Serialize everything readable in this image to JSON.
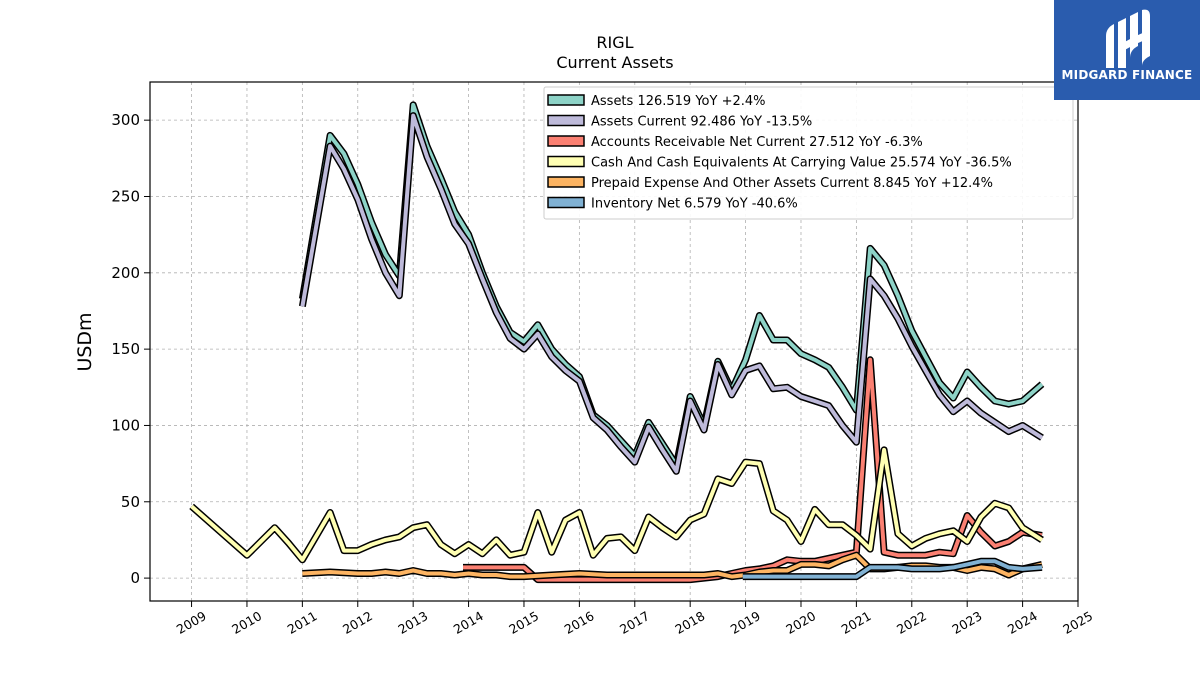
{
  "brand": {
    "name": "MIDGARD FINANCE",
    "bg": "#2a5cae"
  },
  "chart_data": {
    "type": "line",
    "title": "RIGL",
    "subtitle": "Current  Assets",
    "xlabel": "",
    "ylabel": "USDm",
    "xlim": [
      2008.25,
      2025.0
    ],
    "ylim": [
      -15,
      325
    ],
    "yticks": [
      0,
      50,
      100,
      150,
      200,
      250,
      300
    ],
    "xticks": [
      2009,
      2010,
      2011,
      2012,
      2013,
      2014,
      2015,
      2016,
      2017,
      2018,
      2019,
      2020,
      2021,
      2022,
      2023,
      2024,
      2025
    ],
    "grid": true,
    "legend_position": "top-right",
    "series": [
      {
        "name": "Assets  126.519 YoY +2.4%",
        "color": "#8dd3c7",
        "points": [
          [
            2011.0,
            183
          ],
          [
            2011.5,
            290
          ],
          [
            2011.75,
            278
          ],
          [
            2012.0,
            258
          ],
          [
            2012.25,
            233
          ],
          [
            2012.5,
            212
          ],
          [
            2012.75,
            198
          ],
          [
            2013.0,
            310
          ],
          [
            2013.25,
            283
          ],
          [
            2013.5,
            262
          ],
          [
            2013.75,
            240
          ],
          [
            2014.0,
            225
          ],
          [
            2014.25,
            200
          ],
          [
            2014.5,
            178
          ],
          [
            2014.75,
            161
          ],
          [
            2015.0,
            155
          ],
          [
            2015.25,
            166
          ],
          [
            2015.5,
            150
          ],
          [
            2015.75,
            140
          ],
          [
            2016.0,
            132
          ],
          [
            2016.25,
            107
          ],
          [
            2016.5,
            100
          ],
          [
            2016.75,
            90
          ],
          [
            2017.0,
            80
          ],
          [
            2017.25,
            102
          ],
          [
            2017.5,
            88
          ],
          [
            2017.75,
            74
          ],
          [
            2018.0,
            119
          ],
          [
            2018.25,
            100
          ],
          [
            2018.5,
            142
          ],
          [
            2018.75,
            123
          ],
          [
            2019.0,
            143
          ],
          [
            2019.25,
            172
          ],
          [
            2019.5,
            156
          ],
          [
            2019.75,
            156
          ],
          [
            2020.0,
            147
          ],
          [
            2020.25,
            143
          ],
          [
            2020.5,
            138
          ],
          [
            2020.75,
            125
          ],
          [
            2021.0,
            110
          ],
          [
            2021.25,
            216
          ],
          [
            2021.5,
            205
          ],
          [
            2021.75,
            185
          ],
          [
            2022.0,
            162
          ],
          [
            2022.25,
            145
          ],
          [
            2022.5,
            128
          ],
          [
            2022.75,
            118
          ],
          [
            2023.0,
            135
          ],
          [
            2023.25,
            125
          ],
          [
            2023.5,
            116
          ],
          [
            2023.75,
            114
          ],
          [
            2024.0,
            116
          ],
          [
            2024.35,
            127
          ]
        ]
      },
      {
        "name": "Assets Current  92.486 YoY -13.5%",
        "color": "#bebada",
        "points": [
          [
            2011.0,
            178
          ],
          [
            2011.5,
            283
          ],
          [
            2011.75,
            268
          ],
          [
            2012.0,
            248
          ],
          [
            2012.25,
            222
          ],
          [
            2012.5,
            200
          ],
          [
            2012.75,
            185
          ],
          [
            2013.0,
            303
          ],
          [
            2013.25,
            276
          ],
          [
            2013.5,
            255
          ],
          [
            2013.75,
            232
          ],
          [
            2014.0,
            219
          ],
          [
            2014.25,
            196
          ],
          [
            2014.5,
            174
          ],
          [
            2014.75,
            157
          ],
          [
            2015.0,
            150
          ],
          [
            2015.25,
            160
          ],
          [
            2015.5,
            145
          ],
          [
            2015.75,
            136
          ],
          [
            2016.0,
            129
          ],
          [
            2016.25,
            105
          ],
          [
            2016.5,
            97
          ],
          [
            2016.75,
            86
          ],
          [
            2017.0,
            76
          ],
          [
            2017.25,
            99
          ],
          [
            2017.5,
            84
          ],
          [
            2017.75,
            70
          ],
          [
            2018.0,
            116
          ],
          [
            2018.25,
            97
          ],
          [
            2018.5,
            140
          ],
          [
            2018.75,
            120
          ],
          [
            2019.0,
            136
          ],
          [
            2019.25,
            139
          ],
          [
            2019.5,
            124
          ],
          [
            2019.75,
            125
          ],
          [
            2020.0,
            119
          ],
          [
            2020.25,
            116
          ],
          [
            2020.5,
            113
          ],
          [
            2020.75,
            100
          ],
          [
            2021.0,
            89
          ],
          [
            2021.25,
            196
          ],
          [
            2021.5,
            185
          ],
          [
            2021.75,
            170
          ],
          [
            2022.0,
            152
          ],
          [
            2022.25,
            136
          ],
          [
            2022.5,
            120
          ],
          [
            2022.75,
            109
          ],
          [
            2023.0,
            116
          ],
          [
            2023.25,
            108
          ],
          [
            2023.5,
            102
          ],
          [
            2023.75,
            96
          ],
          [
            2024.0,
            100
          ],
          [
            2024.35,
            92
          ]
        ]
      },
      {
        "name": "Accounts Receivable Net Current  27.512 YoY -6.3%",
        "color": "#fb8072",
        "points": [
          [
            2013.9,
            7
          ],
          [
            2014.25,
            7
          ],
          [
            2014.5,
            7
          ],
          [
            2014.75,
            7
          ],
          [
            2015.0,
            7
          ],
          [
            2015.25,
            -1
          ],
          [
            2015.5,
            -1
          ],
          [
            2015.75,
            -1
          ],
          [
            2016.0,
            -1
          ],
          [
            2016.25,
            -1
          ],
          [
            2016.5,
            -1
          ],
          [
            2016.75,
            -1
          ],
          [
            2017.0,
            -1
          ],
          [
            2017.25,
            -1
          ],
          [
            2017.5,
            -1
          ],
          [
            2017.75,
            -1
          ],
          [
            2018.0,
            -1
          ],
          [
            2018.25,
            0
          ],
          [
            2018.5,
            1
          ],
          [
            2018.75,
            3
          ],
          [
            2019.0,
            5
          ],
          [
            2019.25,
            6
          ],
          [
            2019.5,
            8
          ],
          [
            2019.75,
            12
          ],
          [
            2020.0,
            11
          ],
          [
            2020.25,
            11
          ],
          [
            2020.5,
            13
          ],
          [
            2020.75,
            15
          ],
          [
            2021.0,
            17
          ],
          [
            2021.25,
            143
          ],
          [
            2021.5,
            17
          ],
          [
            2021.75,
            15
          ],
          [
            2022.0,
            15
          ],
          [
            2022.25,
            15
          ],
          [
            2022.5,
            17
          ],
          [
            2022.75,
            16
          ],
          [
            2023.0,
            41
          ],
          [
            2023.25,
            30
          ],
          [
            2023.5,
            21
          ],
          [
            2023.75,
            24
          ],
          [
            2024.0,
            30
          ],
          [
            2024.35,
            28
          ]
        ]
      },
      {
        "name": "Cash And Cash Equivalents At Carrying Value  25.574 YoY -36.5%",
        "color": "#ffffb3",
        "points": [
          [
            2009.0,
            47
          ],
          [
            2010.0,
            15
          ],
          [
            2010.5,
            33
          ],
          [
            2010.75,
            23
          ],
          [
            2011.0,
            12
          ],
          [
            2011.5,
            43
          ],
          [
            2011.75,
            18
          ],
          [
            2012.0,
            18
          ],
          [
            2012.25,
            22
          ],
          [
            2012.5,
            25
          ],
          [
            2012.75,
            27
          ],
          [
            2013.0,
            33
          ],
          [
            2013.25,
            35
          ],
          [
            2013.5,
            22
          ],
          [
            2013.75,
            16
          ],
          [
            2014.0,
            22
          ],
          [
            2014.25,
            16
          ],
          [
            2014.5,
            25
          ],
          [
            2014.75,
            15
          ],
          [
            2015.0,
            17
          ],
          [
            2015.25,
            43
          ],
          [
            2015.5,
            17
          ],
          [
            2015.75,
            38
          ],
          [
            2016.0,
            43
          ],
          [
            2016.25,
            15
          ],
          [
            2016.5,
            26
          ],
          [
            2016.75,
            27
          ],
          [
            2017.0,
            18
          ],
          [
            2017.25,
            40
          ],
          [
            2017.5,
            33
          ],
          [
            2017.75,
            27
          ],
          [
            2018.0,
            38
          ],
          [
            2018.25,
            42
          ],
          [
            2018.5,
            65
          ],
          [
            2018.75,
            62
          ],
          [
            2019.0,
            76
          ],
          [
            2019.25,
            75
          ],
          [
            2019.5,
            44
          ],
          [
            2019.75,
            38
          ],
          [
            2020.0,
            24
          ],
          [
            2020.25,
            45
          ],
          [
            2020.5,
            35
          ],
          [
            2020.75,
            35
          ],
          [
            2021.0,
            28
          ],
          [
            2021.25,
            19
          ],
          [
            2021.5,
            84
          ],
          [
            2021.75,
            29
          ],
          [
            2022.0,
            21
          ],
          [
            2022.25,
            26
          ],
          [
            2022.5,
            29
          ],
          [
            2022.75,
            31
          ],
          [
            2023.0,
            24
          ],
          [
            2023.25,
            40
          ],
          [
            2023.5,
            49
          ],
          [
            2023.75,
            46
          ],
          [
            2024.0,
            33
          ],
          [
            2024.35,
            25
          ]
        ]
      },
      {
        "name": "Prepaid Expense And Other Assets Current  8.845 YoY +12.4%",
        "color": "#fdb462",
        "points": [
          [
            2011.0,
            3
          ],
          [
            2011.5,
            4
          ],
          [
            2012.0,
            3
          ],
          [
            2012.25,
            3
          ],
          [
            2012.5,
            4
          ],
          [
            2012.75,
            3
          ],
          [
            2013.0,
            5
          ],
          [
            2013.25,
            3
          ],
          [
            2013.5,
            3
          ],
          [
            2013.75,
            2
          ],
          [
            2014.0,
            3
          ],
          [
            2014.25,
            2
          ],
          [
            2014.5,
            2
          ],
          [
            2014.75,
            1
          ],
          [
            2015.0,
            1
          ],
          [
            2015.5,
            2
          ],
          [
            2016.0,
            3
          ],
          [
            2016.5,
            2
          ],
          [
            2017.0,
            2
          ],
          [
            2017.5,
            2
          ],
          [
            2018.0,
            2
          ],
          [
            2018.25,
            2
          ],
          [
            2018.5,
            3
          ],
          [
            2018.75,
            1
          ],
          [
            2019.0,
            2
          ],
          [
            2019.25,
            4
          ],
          [
            2019.5,
            5
          ],
          [
            2019.75,
            5
          ],
          [
            2020.0,
            9
          ],
          [
            2020.25,
            9
          ],
          [
            2020.5,
            8
          ],
          [
            2020.75,
            12
          ],
          [
            2021.0,
            15
          ],
          [
            2021.25,
            6
          ],
          [
            2021.5,
            6
          ],
          [
            2021.75,
            7
          ],
          [
            2022.0,
            8
          ],
          [
            2022.25,
            8
          ],
          [
            2022.5,
            7
          ],
          [
            2022.75,
            7
          ],
          [
            2023.0,
            5
          ],
          [
            2023.25,
            7
          ],
          [
            2023.5,
            6
          ],
          [
            2023.75,
            2
          ],
          [
            2024.0,
            6
          ],
          [
            2024.35,
            9
          ]
        ]
      },
      {
        "name": "Inventory Net  6.579 YoY -40.6%",
        "color": "#80b1d3",
        "points": [
          [
            2018.95,
            1
          ],
          [
            2019.25,
            1
          ],
          [
            2019.5,
            1
          ],
          [
            2019.75,
            1
          ],
          [
            2020.0,
            1
          ],
          [
            2020.25,
            1
          ],
          [
            2020.5,
            1
          ],
          [
            2020.75,
            1
          ],
          [
            2021.0,
            1
          ],
          [
            2021.25,
            7
          ],
          [
            2021.5,
            7
          ],
          [
            2021.75,
            7
          ],
          [
            2022.0,
            6
          ],
          [
            2022.25,
            6
          ],
          [
            2022.5,
            6
          ],
          [
            2022.75,
            7
          ],
          [
            2023.0,
            9
          ],
          [
            2023.25,
            11
          ],
          [
            2023.5,
            11
          ],
          [
            2023.75,
            7
          ],
          [
            2024.0,
            6
          ],
          [
            2024.35,
            7
          ]
        ]
      }
    ]
  }
}
